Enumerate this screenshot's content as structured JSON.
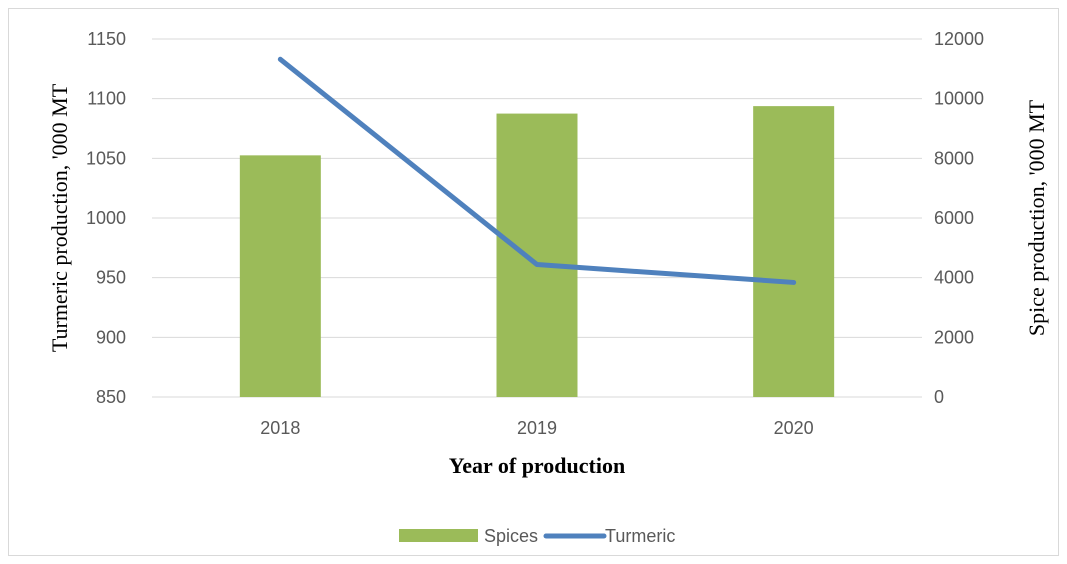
{
  "chart_data": {
    "type": "bar",
    "categories": [
      "2018",
      "2019",
      "2020"
    ],
    "xlabel": "Year of production",
    "ylabel_left": "Turmeric production,  '000 MT",
    "ylabel_right": "Spice production,  '000 MT",
    "ylim_left": [
      850,
      1150
    ],
    "ylim_right": [
      0,
      12000
    ],
    "yticks_left": [
      "850",
      "900",
      "950",
      "1000",
      "1050",
      "1100",
      "1150"
    ],
    "yticks_right": [
      "0",
      "2000",
      "4000",
      "6000",
      "8000",
      "10000",
      "12000"
    ],
    "grid": true,
    "legend_position": "bottom",
    "series": [
      {
        "name": "Spices",
        "type": "bar",
        "axis": "right",
        "color": "#9bbb59",
        "values": [
          8100,
          9500,
          9750
        ]
      },
      {
        "name": "Turmeric",
        "type": "line",
        "axis": "left",
        "color": "#4f81bd",
        "values": [
          1133,
          961,
          946
        ]
      }
    ]
  }
}
